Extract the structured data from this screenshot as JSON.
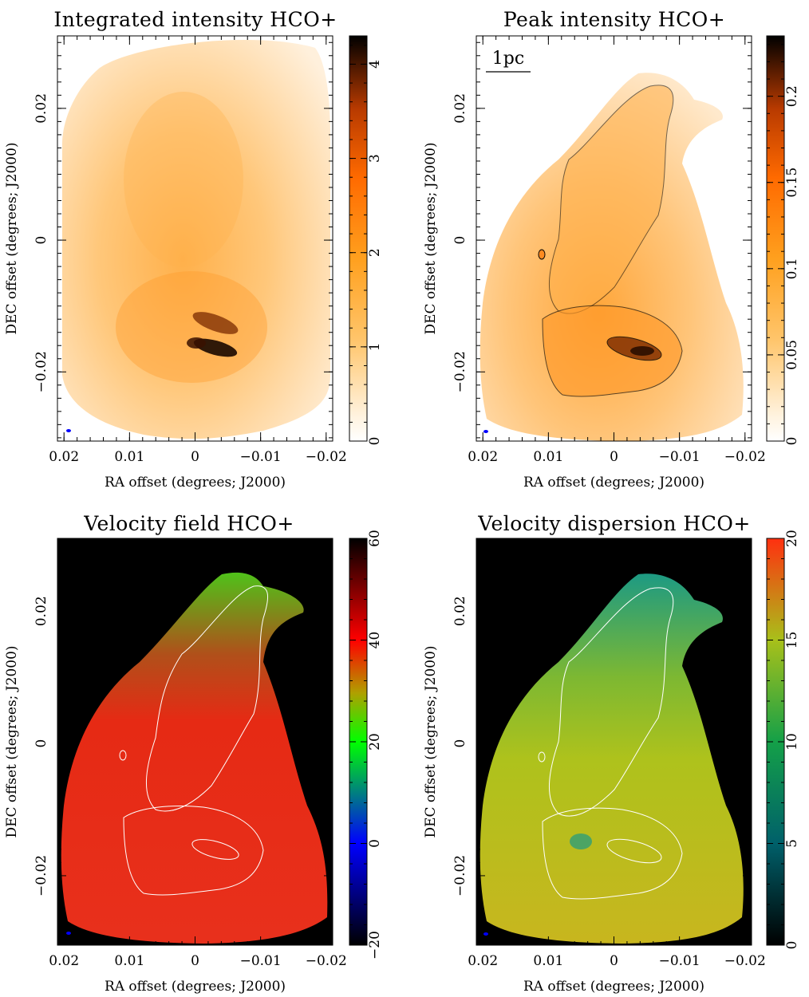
{
  "chart_data": [
    {
      "type": "heatmap",
      "title": "Integrated intensity HCO+",
      "xlabel": "RA offset (degrees; J2000)",
      "ylabel": "DEC offset (degrees; J2000)",
      "x_ticks": [
        "0.02",
        "0.01",
        "0",
        "−0.01",
        "−0.02"
      ],
      "y_ticks": [
        "−0.02",
        "0",
        "0.02"
      ],
      "xlim": [
        0.021,
        -0.021
      ],
      "ylim": [
        -0.0305,
        0.031
      ],
      "colorbar": {
        "ticks": [
          "0",
          "1",
          "2",
          "3",
          "4"
        ],
        "range": [
          0,
          4.3
        ],
        "colormap": "white-orange-black"
      },
      "contours": false
    },
    {
      "type": "heatmap",
      "title": "Peak intensity HCO+",
      "xlabel": "RA offset (degrees; J2000)",
      "ylabel": "DEC offset (degrees; J2000)",
      "x_ticks": [
        "0.02",
        "0.01",
        "0",
        "−0.01",
        "−0.02"
      ],
      "y_ticks": [
        "−0.02",
        "0",
        "0.02"
      ],
      "xlim": [
        0.021,
        -0.021
      ],
      "ylim": [
        -0.0305,
        0.031
      ],
      "colorbar": {
        "ticks": [
          "0",
          "0.05",
          "0.1",
          "0.15",
          "0.2"
        ],
        "range": [
          0,
          0.235
        ],
        "colormap": "white-orange-black"
      },
      "scale_bar": "1pc",
      "contours": true
    },
    {
      "type": "heatmap",
      "title": "Velocity field HCO+",
      "xlabel": "RA offset (degrees; J2000)",
      "ylabel": "DEC offset (degrees; J2000)",
      "x_ticks": [
        "0.02",
        "0.01",
        "0",
        "−0.01",
        "−0.02"
      ],
      "y_ticks": [
        "−0.02",
        "0",
        "0.02"
      ],
      "xlim": [
        0.021,
        -0.021
      ],
      "ylim": [
        -0.0305,
        0.031
      ],
      "colorbar": {
        "ticks": [
          "−20",
          "0",
          "20",
          "40",
          "60"
        ],
        "range": [
          -20,
          60
        ],
        "colormap": "black-blue-green-red-black"
      },
      "contours": true
    },
    {
      "type": "heatmap",
      "title": "Velocity dispersion HCO+",
      "xlabel": "RA offset (degrees; J2000)",
      "ylabel": "DEC offset (degrees; J2000)",
      "x_ticks": [
        "0.02",
        "0.01",
        "0",
        "−0.01",
        "−0.02"
      ],
      "y_ticks": [
        "−0.02",
        "0",
        "0.02"
      ],
      "xlim": [
        0.021,
        -0.021
      ],
      "ylim": [
        -0.0305,
        0.031
      ],
      "colorbar": {
        "ticks": [
          "0",
          "5",
          "10",
          "15",
          "20"
        ],
        "range": [
          0,
          20
        ],
        "colormap": "black-teal-green-yellow-orange"
      },
      "contours": true
    }
  ],
  "colors": {
    "orange_low": "#fff6ea",
    "orange_mid": "#ffb347",
    "orange_high": "#ff7a00",
    "orange_dark": "#7a2a00",
    "vel_red": "#e8271a",
    "vel_green": "#59c21c",
    "disp_yellow": "#b6c21c",
    "disp_teal": "#1d9a83",
    "beam": "#0000ff"
  }
}
